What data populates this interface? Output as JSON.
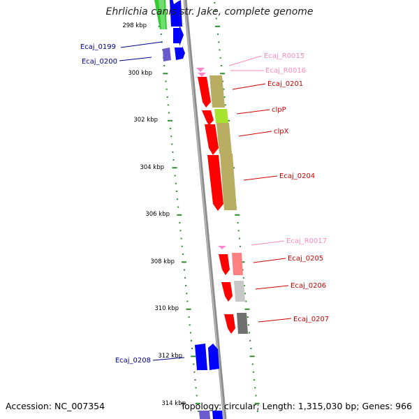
{
  "title": "Ehrlichia canis str. Jake, complete genome",
  "accession_text": "Accession: NC_007354",
  "summary_text": "Topology: circular; Length: 1,315,030 bp; Genes: 966",
  "colors": {
    "backbone": "#8c8c8c",
    "ruler_dots": "#2e8b2e",
    "forward_gene": "#0000ff",
    "forward_gene_dim": "#6a5acd",
    "forward_gene_other": "#33cc33",
    "reverse_gene": "#ff0000",
    "rna_gene": "#ff88cc",
    "cog_olive": "#b8ad60",
    "cog_lime": "#a6e22e",
    "cog_pink": "#ff8080",
    "cog_light_gray": "#c8c8c8",
    "cog_dark_gray": "#707070",
    "label_forward": "#00008b",
    "label_reverse": "#cc0000",
    "label_rna": "#ff88bb"
  },
  "ruler": {
    "labels": [
      "298 kbp",
      "300 kbp",
      "302 kbp",
      "304 kbp",
      "306 kbp",
      "308 kbp",
      "310 kbp",
      "312 kbp",
      "314 kbp"
    ]
  },
  "genes": [
    {
      "name": "Ecaj_0199",
      "strand": "forward",
      "type": "CDS"
    },
    {
      "name": "Ecaj_0200",
      "strand": "forward",
      "type": "CDS"
    },
    {
      "name": "Ecaj_R0015",
      "strand": "reverse",
      "type": "RNA"
    },
    {
      "name": "Ecaj_R0016",
      "strand": "reverse",
      "type": "RNA"
    },
    {
      "name": "Ecaj_0201",
      "strand": "reverse",
      "type": "CDS"
    },
    {
      "name": "clpP",
      "strand": "reverse",
      "type": "CDS"
    },
    {
      "name": "clpX",
      "strand": "reverse",
      "type": "CDS"
    },
    {
      "name": "Ecaj_0204",
      "strand": "reverse",
      "type": "CDS"
    },
    {
      "name": "Ecaj_R0017",
      "strand": "reverse",
      "type": "RNA"
    },
    {
      "name": "Ecaj_0205",
      "strand": "reverse",
      "type": "CDS"
    },
    {
      "name": "Ecaj_0206",
      "strand": "reverse",
      "type": "CDS"
    },
    {
      "name": "Ecaj_0207",
      "strand": "reverse",
      "type": "CDS"
    },
    {
      "name": "Ecaj_0208",
      "strand": "forward",
      "type": "CDS"
    }
  ]
}
